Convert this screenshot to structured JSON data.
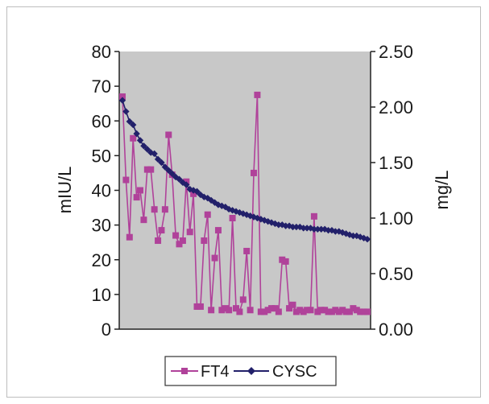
{
  "chart_data": {
    "type": "line",
    "x": [
      1,
      2,
      3,
      4,
      5,
      6,
      7,
      8,
      9,
      10,
      11,
      12,
      13,
      14,
      15,
      16,
      17,
      18,
      19,
      20,
      21,
      22,
      23,
      24,
      25,
      26,
      27,
      28,
      29,
      30,
      31,
      32,
      33,
      34,
      35,
      36,
      37,
      38,
      39,
      40,
      41,
      42,
      43,
      44,
      45,
      46,
      47,
      48,
      49,
      50,
      51,
      52,
      53,
      54,
      55,
      56,
      57,
      58,
      59,
      60,
      61,
      62,
      63,
      64,
      65,
      66,
      67,
      68,
      69,
      70
    ],
    "y_left": {
      "label": "mIU/L",
      "ylim": [
        0,
        80
      ],
      "ticks": [
        "0",
        "10",
        "20",
        "30",
        "40",
        "50",
        "60",
        "70",
        "80"
      ]
    },
    "y_right": {
      "label": "mg/L",
      "ylim": [
        0,
        2.5
      ],
      "ticks": [
        "0.00",
        "0.50",
        "1.00",
        "1.50",
        "2.00",
        "2.50"
      ]
    },
    "grid": false,
    "plot_background": "#c8c8c8",
    "legend_position": "bottom",
    "series": [
      {
        "name": "FT4",
        "axis": "left",
        "color": "#b0429a",
        "marker": "square",
        "values": [
          67,
          43,
          26.5,
          55,
          38,
          40,
          31.5,
          46,
          46,
          34.5,
          25.5,
          28.5,
          34.5,
          56,
          44.5,
          27,
          24.5,
          25.5,
          42.5,
          28,
          39,
          6.5,
          6.5,
          25.5,
          33,
          5.5,
          20.5,
          28.5,
          5.5,
          6,
          5.5,
          32,
          6,
          5,
          8.5,
          22.5,
          5.5,
          45,
          67.5,
          5,
          5,
          5.5,
          6,
          6,
          5,
          20,
          19.5,
          6,
          7,
          5,
          5.5,
          5,
          5.5,
          5.5,
          32.5,
          5,
          5.5,
          5.5,
          5,
          5,
          5.5,
          5,
          5.5,
          5,
          5,
          6,
          5.5,
          5,
          5,
          5
        ]
      },
      {
        "name": "CYSC",
        "axis": "right",
        "color": "#22206a",
        "marker": "diamond",
        "values": [
          2.06,
          1.96,
          1.87,
          1.84,
          1.76,
          1.7,
          1.65,
          1.62,
          1.59,
          1.58,
          1.53,
          1.5,
          1.46,
          1.43,
          1.4,
          1.37,
          1.35,
          1.32,
          1.3,
          1.26,
          1.25,
          1.24,
          1.21,
          1.19,
          1.18,
          1.16,
          1.14,
          1.12,
          1.11,
          1.1,
          1.08,
          1.07,
          1.06,
          1.05,
          1.04,
          1.03,
          1.02,
          1.01,
          1.0,
          0.99,
          0.98,
          0.97,
          0.96,
          0.95,
          0.94,
          0.94,
          0.93,
          0.93,
          0.92,
          0.92,
          0.92,
          0.91,
          0.91,
          0.91,
          0.9,
          0.9,
          0.9,
          0.9,
          0.89,
          0.89,
          0.88,
          0.88,
          0.87,
          0.86,
          0.85,
          0.84,
          0.84,
          0.83,
          0.82,
          0.81
        ]
      }
    ]
  }
}
